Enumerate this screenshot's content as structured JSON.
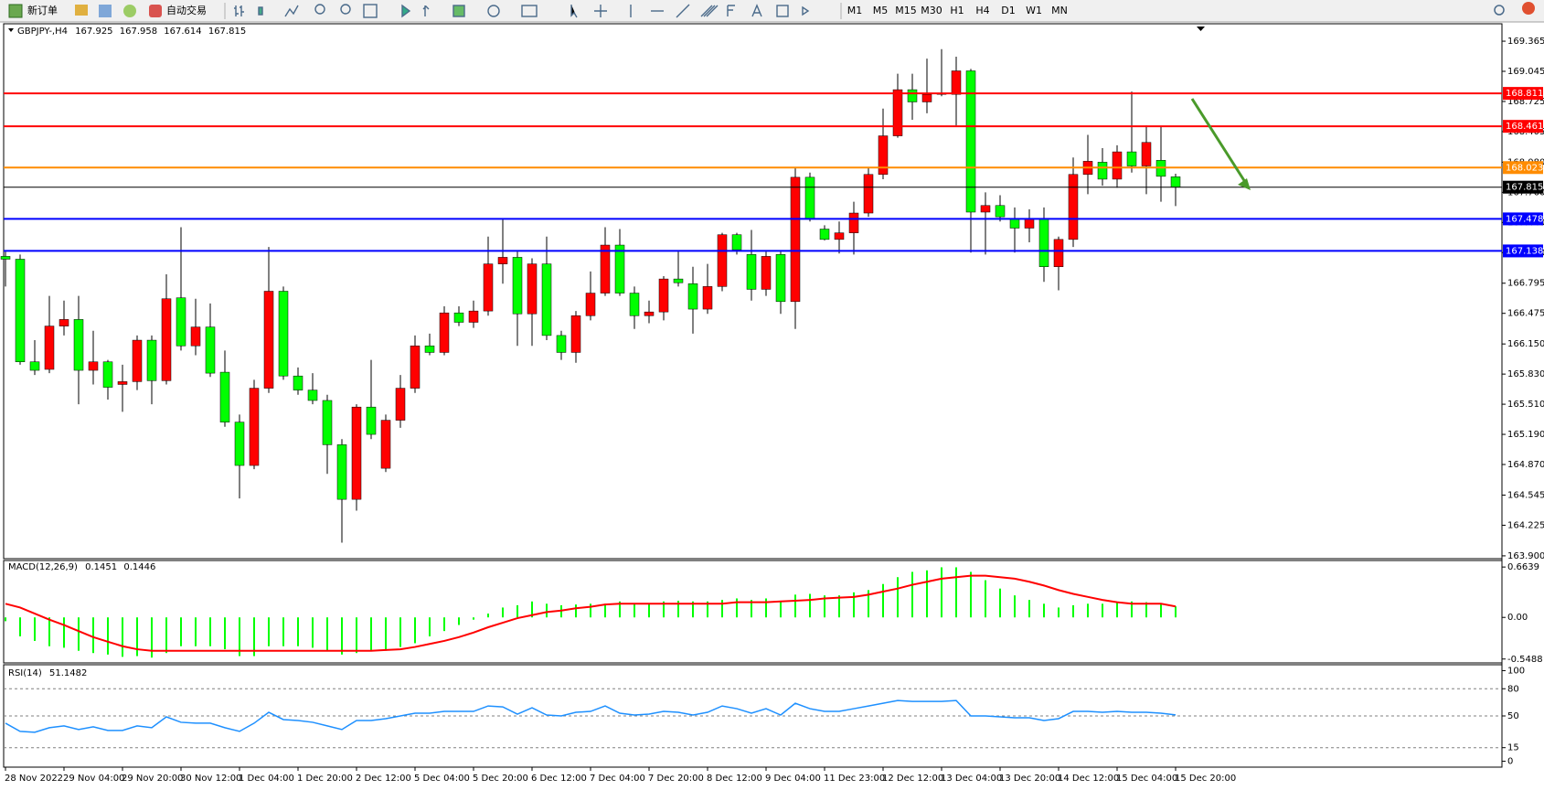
{
  "toolbar": {
    "buttons": [
      "新订单",
      "自动交易"
    ],
    "timeframes": [
      "M1",
      "M5",
      "M15",
      "M30",
      "H1",
      "H4",
      "D1",
      "W1",
      "MN"
    ]
  },
  "chart_data": [
    {
      "type": "candlestick",
      "title": "GBPJPY-,H4",
      "categories": [
        "28 Nov 2022",
        null,
        null,
        null,
        "29 Nov 04:00",
        null,
        null,
        null,
        "29 Nov 20:00",
        null,
        null,
        null,
        "30 Nov 12:00",
        null,
        null,
        null,
        "1 Dec 04:00",
        null,
        null,
        null,
        "1 Dec 20:00",
        null,
        null,
        null,
        "2 Dec 12:00",
        null,
        null,
        null,
        "5 Dec 04:00",
        null,
        null,
        null,
        "5 Dec 20:00",
        null,
        null,
        null,
        "6 Dec 12:00",
        null,
        null,
        null,
        "7 Dec 04:00",
        null,
        null,
        null,
        "7 Dec 20:00",
        null,
        null,
        null,
        "8 Dec 12:00",
        null,
        null,
        null,
        "9 Dec 04:00",
        null,
        null,
        null,
        "11 Dec 23:00",
        null,
        null,
        null,
        "12 Dec 12:00",
        null,
        null,
        null,
        "13 Dec 04:00",
        null,
        null,
        null,
        "13 Dec 20:00",
        null,
        null,
        null,
        "14 Dec 12:00",
        null,
        null,
        null,
        "15 Dec 04:00",
        null,
        null,
        null,
        "15 Dec 20:00"
      ],
      "open": [
        167.08,
        167.05,
        165.96,
        165.88,
        166.34,
        166.41,
        165.87,
        165.96,
        165.72,
        165.75,
        166.19,
        165.76,
        166.64,
        166.13,
        166.33,
        165.85,
        165.32,
        164.86,
        165.68,
        166.71,
        165.81,
        165.66,
        165.55,
        165.08,
        164.5,
        165.48,
        164.83,
        165.34,
        165.68,
        166.13,
        166.06,
        166.48,
        166.38,
        166.5,
        167.0,
        167.07,
        166.47,
        167.0,
        166.24,
        166.06,
        166.45,
        166.69,
        167.2,
        166.69,
        166.45,
        166.49,
        166.84,
        166.79,
        166.52,
        166.76,
        167.31,
        167.1,
        166.73,
        167.1,
        166.6,
        167.92,
        167.37,
        167.26,
        167.33,
        167.54,
        167.95,
        168.36,
        168.85,
        168.72,
        168.8,
        168.8,
        169.05,
        167.55,
        167.62,
        167.48,
        167.38,
        167.48,
        166.97,
        167.26,
        167.95,
        168.08,
        167.9,
        168.19,
        168.04,
        168.1,
        167.925
      ],
      "high": [
        167.13,
        167.1,
        166.19,
        166.66,
        166.61,
        166.66,
        166.29,
        165.98,
        165.93,
        166.24,
        166.24,
        166.89,
        167.39,
        166.63,
        166.58,
        166.08,
        165.4,
        165.77,
        167.18,
        166.76,
        165.9,
        165.84,
        165.61,
        165.14,
        165.51,
        165.98,
        165.4,
        165.82,
        166.24,
        166.26,
        166.55,
        166.55,
        166.61,
        167.29,
        167.48,
        167.13,
        167.06,
        167.29,
        166.29,
        166.5,
        166.92,
        167.39,
        167.37,
        166.76,
        166.61,
        166.87,
        167.13,
        166.97,
        167.0,
        167.33,
        167.33,
        167.36,
        167.13,
        167.13,
        168.02,
        167.97,
        167.41,
        167.45,
        167.66,
        168.02,
        168.65,
        169.02,
        169.02,
        169.18,
        169.28,
        169.2,
        169.07,
        167.76,
        167.73,
        167.6,
        167.58,
        167.6,
        167.29,
        168.13,
        168.37,
        168.23,
        168.26,
        168.83,
        168.47,
        168.46,
        167.958
      ],
      "low": [
        166.76,
        165.93,
        165.82,
        165.84,
        166.24,
        165.51,
        165.72,
        165.56,
        165.43,
        165.66,
        165.51,
        165.72,
        166.08,
        166.03,
        165.8,
        165.27,
        164.51,
        164.82,
        165.63,
        165.77,
        165.61,
        165.51,
        164.77,
        164.04,
        164.38,
        165.14,
        164.79,
        165.26,
        165.63,
        166.03,
        166.03,
        166.34,
        166.32,
        166.45,
        166.79,
        166.13,
        166.13,
        166.19,
        165.98,
        165.95,
        166.4,
        166.66,
        166.66,
        166.31,
        166.37,
        166.4,
        166.76,
        166.26,
        166.47,
        166.71,
        167.1,
        166.61,
        166.66,
        166.47,
        166.31,
        167.45,
        167.25,
        167.11,
        167.1,
        167.5,
        167.9,
        168.34,
        168.53,
        168.6,
        168.78,
        168.47,
        167.12,
        167.1,
        167.45,
        167.12,
        167.23,
        166.81,
        166.72,
        167.18,
        167.74,
        167.83,
        167.81,
        167.97,
        167.74,
        167.66,
        167.614
      ],
      "close": [
        167.05,
        165.96,
        165.87,
        166.34,
        166.41,
        165.87,
        165.96,
        165.69,
        165.75,
        166.19,
        165.76,
        166.63,
        166.13,
        166.33,
        165.84,
        165.32,
        164.86,
        165.68,
        166.71,
        165.81,
        165.66,
        165.55,
        165.08,
        164.5,
        165.48,
        165.19,
        165.34,
        165.68,
        166.13,
        166.06,
        166.48,
        166.38,
        166.5,
        167.0,
        167.07,
        166.47,
        167.0,
        166.24,
        166.06,
        166.45,
        166.69,
        167.2,
        166.69,
        166.45,
        166.49,
        166.84,
        166.8,
        166.52,
        166.76,
        167.31,
        167.15,
        166.73,
        167.08,
        166.6,
        167.92,
        167.48,
        167.26,
        167.33,
        167.54,
        167.95,
        168.36,
        168.85,
        168.72,
        168.8,
        168.81,
        169.05,
        167.55,
        167.62,
        167.5,
        167.38,
        167.48,
        166.97,
        167.26,
        167.95,
        168.09,
        167.9,
        168.19,
        168.04,
        168.29,
        167.93,
        167.815
      ],
      "up_color": "#ff0000",
      "down_color": "#00ff00",
      "ylim": [
        163.87,
        169.55
      ],
      "yticks": [
        169.365,
        169.045,
        168.725,
        168.405,
        {
          "value": 168.08,
          "label": "168.080"
        },
        {
          "value": 167.76,
          "label": "167.760"
        },
        {
          "value": 167.44,
          "label": "167.440"
        },
        {
          "value": 167.12,
          "label": "167.120"
        },
        166.795,
        166.475,
        {
          "value": 166.15,
          "label": "166.150"
        },
        {
          "value": 165.83,
          "label": "165.830"
        },
        {
          "value": 165.51,
          "label": "165.510"
        },
        {
          "value": 165.19,
          "label": "165.190"
        },
        {
          "value": 164.87,
          "label": "164.870"
        },
        164.545,
        164.225,
        {
          "value": 163.9,
          "label": "163.900"
        }
      ],
      "levels": [
        {
          "value": 168.811,
          "color": "#ff0000"
        },
        {
          "value": 168.461,
          "color": "#ff0000"
        },
        {
          "value": 168.023,
          "color": "#ff8c00"
        },
        {
          "value": 167.815,
          "color": "#000000"
        },
        {
          "value": 167.478,
          "color": "#0000ff"
        },
        {
          "value": 167.138,
          "color": "#0000ff"
        }
      ]
    },
    {
      "type": "macd",
      "title": "MACD(12,26,9)",
      "values": [
        -0.05,
        -0.25,
        -0.31,
        -0.38,
        -0.4,
        -0.44,
        -0.47,
        -0.49,
        -0.52,
        -0.51,
        -0.53,
        -0.47,
        -0.38,
        -0.38,
        -0.38,
        -0.42,
        -0.51,
        -0.51,
        -0.38,
        -0.38,
        -0.38,
        -0.4,
        -0.44,
        -0.49,
        -0.47,
        -0.44,
        -0.44,
        -0.39,
        -0.34,
        -0.25,
        -0.18,
        -0.1,
        -0.03,
        0.05,
        0.13,
        0.16,
        0.21,
        0.18,
        0.16,
        0.17,
        0.18,
        0.18,
        0.21,
        0.18,
        0.18,
        0.21,
        0.22,
        0.21,
        0.21,
        0.23,
        0.25,
        0.23,
        0.25,
        0.22,
        0.3,
        0.31,
        0.29,
        0.29,
        0.33,
        0.36,
        0.44,
        0.53,
        0.6,
        0.62,
        0.66,
        0.66,
        0.6,
        0.49,
        0.38,
        0.29,
        0.23,
        0.18,
        0.13,
        0.16,
        0.18,
        0.18,
        0.2,
        0.21,
        0.2,
        0.18,
        0.1451
      ],
      "signal": [
        0.18,
        0.13,
        0.05,
        -0.03,
        -0.1,
        -0.18,
        -0.26,
        -0.32,
        -0.38,
        -0.42,
        -0.44,
        -0.44,
        -0.44,
        -0.44,
        -0.44,
        -0.44,
        -0.44,
        -0.44,
        -0.44,
        -0.44,
        -0.44,
        -0.44,
        -0.44,
        -0.44,
        -0.44,
        -0.44,
        -0.43,
        -0.42,
        -0.39,
        -0.35,
        -0.31,
        -0.26,
        -0.2,
        -0.13,
        -0.07,
        -0.01,
        0.03,
        0.07,
        0.09,
        0.12,
        0.14,
        0.17,
        0.18,
        0.18,
        0.18,
        0.18,
        0.18,
        0.18,
        0.18,
        0.18,
        0.2,
        0.2,
        0.2,
        0.21,
        0.22,
        0.23,
        0.25,
        0.26,
        0.27,
        0.3,
        0.34,
        0.38,
        0.43,
        0.47,
        0.51,
        0.53,
        0.55,
        0.55,
        0.53,
        0.51,
        0.47,
        0.42,
        0.36,
        0.31,
        0.27,
        0.23,
        0.2,
        0.18,
        0.18,
        0.18,
        0.1446
      ],
      "color": "#00ff00",
      "signal_color": "#ff0000",
      "ylim": [
        -0.6,
        0.75
      ],
      "yticks": [
        0.6639,
        {
          "value": 0,
          "label": "0.00"
        },
        -0.5488
      ]
    },
    {
      "type": "line",
      "title": "RSI(14)",
      "values": [
        42,
        33,
        32,
        37,
        39,
        35,
        38,
        34,
        34,
        39,
        37,
        49,
        43,
        42,
        42,
        37,
        33,
        42,
        54,
        46,
        45,
        43,
        39,
        35,
        45,
        45,
        47,
        50,
        53,
        53,
        55,
        55,
        55,
        61,
        60,
        52,
        59,
        51,
        50,
        54,
        55,
        61,
        53,
        51,
        52,
        55,
        54,
        51,
        54,
        61,
        58,
        53,
        58,
        51,
        64,
        58,
        55,
        55,
        58,
        61,
        64,
        67,
        66,
        66,
        66,
        67,
        50,
        50,
        49,
        48,
        48,
        45,
        47,
        55,
        55,
        54,
        55,
        54,
        54,
        53,
        51.1482
      ],
      "color": "#1e90ff",
      "ylim": [
        -6.5,
        106.5
      ],
      "yticks": [
        100,
        80,
        50,
        15,
        0
      ],
      "levels": [
        80,
        50,
        15
      ]
    }
  ]
}
